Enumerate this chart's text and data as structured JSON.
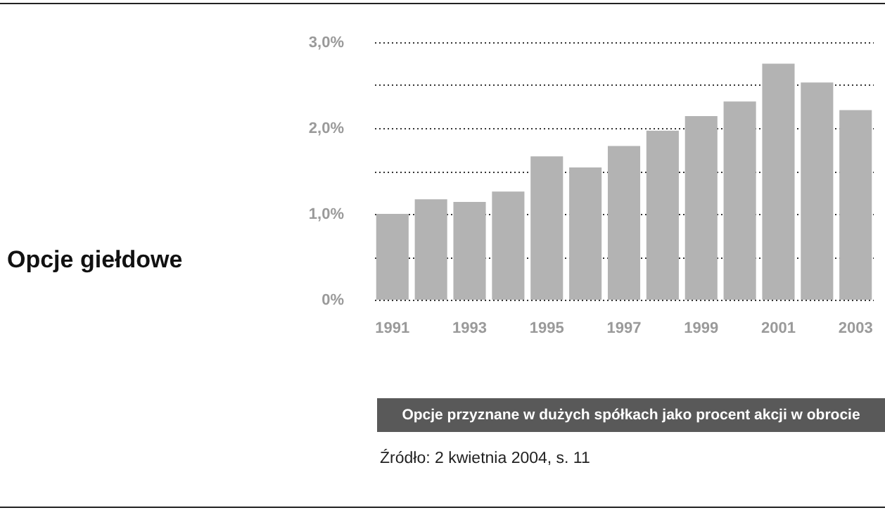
{
  "chart_data": {
    "type": "bar",
    "title": "Opcje giełdowe",
    "xlabel": "Opcje przyznane w dużych spółkach jako procent akcji w obrocie",
    "categories": [
      "1991",
      null,
      "1993",
      null,
      "1995",
      null,
      "1997",
      null,
      "1999",
      null,
      "2001",
      null,
      "2003"
    ],
    "values": [
      1.0,
      1.17,
      1.14,
      1.26,
      1.67,
      1.54,
      1.79,
      1.97,
      2.14,
      2.31,
      2.75,
      2.53,
      2.21
    ],
    "color": "#b3b3b3",
    "ylim": [
      0,
      3
    ],
    "yticks": [
      {
        "value": 0,
        "label": "0%"
      },
      {
        "value": 0.5,
        "label": null
      },
      {
        "value": 1,
        "label": "1,0%"
      },
      {
        "value": 1.5,
        "label": null
      },
      {
        "value": 2,
        "label": "2,0%"
      },
      {
        "value": 2.5,
        "label": null
      },
      {
        "value": 3,
        "label": "3,0%"
      }
    ],
    "grid": "y",
    "annotations": [
      "Źródło: 2 kwietnia 2004, s. 11"
    ]
  }
}
